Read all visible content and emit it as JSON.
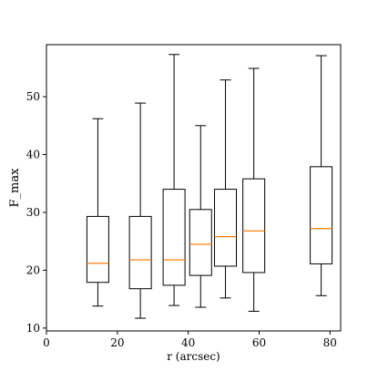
{
  "chart_data": {
    "type": "box",
    "xlabel": "r (arcsec)",
    "ylabel": "F_max",
    "xlim": [
      0,
      83
    ],
    "ylim": [
      9.5,
      59
    ],
    "xticks": [
      0,
      20,
      40,
      60,
      80
    ],
    "yticks": [
      10,
      20,
      30,
      40,
      50
    ],
    "median_color": "#ff7f0e",
    "grid": false,
    "boxes": [
      {
        "x": 14.5,
        "whislo": 13.8,
        "q1": 17.9,
        "med": 21.2,
        "q3": 29.3,
        "whishi": 46.2
      },
      {
        "x": 26.5,
        "whislo": 11.7,
        "q1": 16.8,
        "med": 21.8,
        "q3": 29.3,
        "whishi": 48.9
      },
      {
        "x": 36.0,
        "whislo": 13.9,
        "q1": 17.4,
        "med": 21.8,
        "q3": 34.0,
        "whishi": 57.3
      },
      {
        "x": 43.5,
        "whislo": 13.6,
        "q1": 19.1,
        "med": 24.5,
        "q3": 30.5,
        "whishi": 45.0
      },
      {
        "x": 50.5,
        "whislo": 15.2,
        "q1": 20.7,
        "med": 25.8,
        "q3": 34.0,
        "whishi": 52.9
      },
      {
        "x": 58.5,
        "whislo": 12.9,
        "q1": 19.6,
        "med": 26.8,
        "q3": 35.8,
        "whishi": 54.9
      },
      {
        "x": 77.5,
        "whislo": 15.6,
        "q1": 21.1,
        "med": 27.2,
        "q3": 37.9,
        "whishi": 57.1
      }
    ]
  }
}
